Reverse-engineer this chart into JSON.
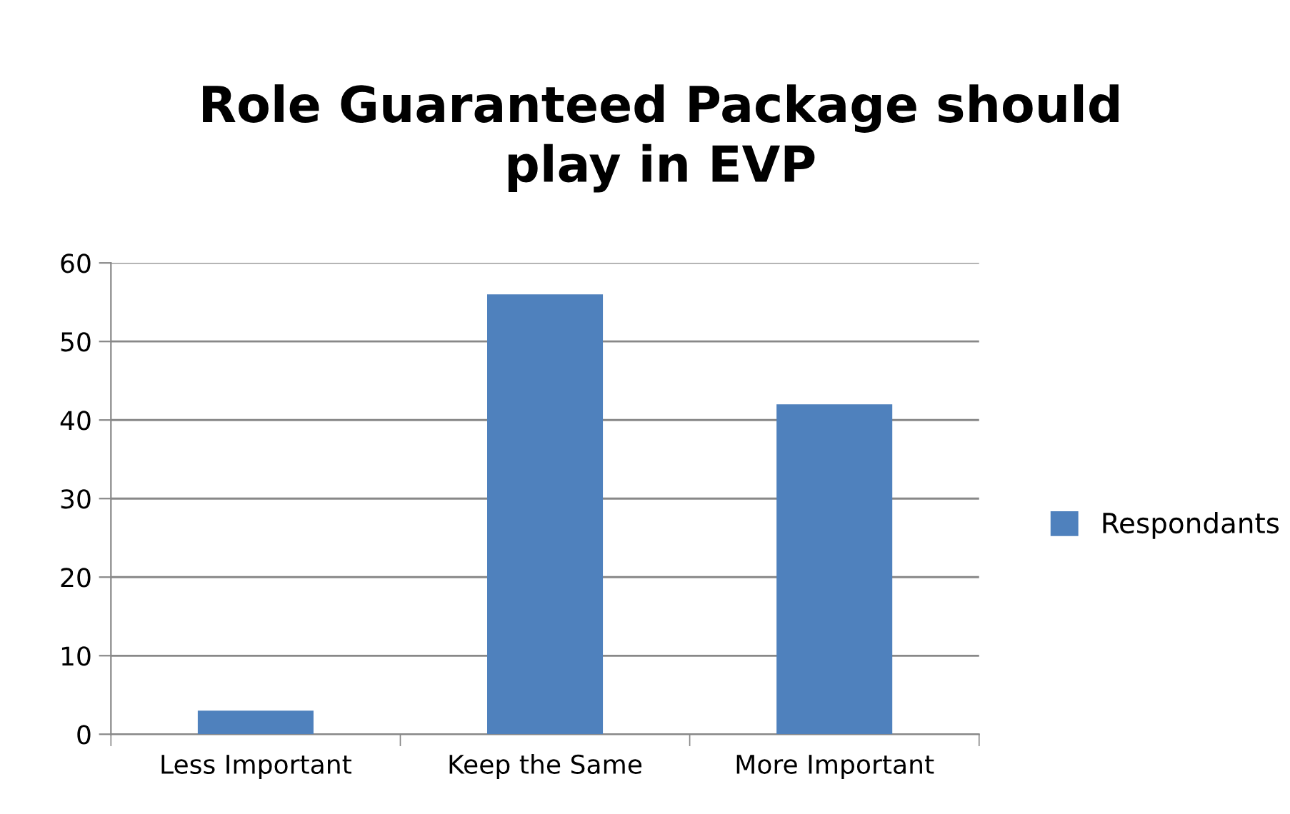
{
  "chart_data": {
    "type": "bar",
    "title": "Role Guaranteed Package should\nplay in EVP",
    "categories": [
      "Less Important",
      "Keep the Same",
      "More Important"
    ],
    "series": [
      {
        "name": "Respondants",
        "color": "#4f81bd",
        "values": [
          3,
          56,
          42
        ]
      }
    ],
    "ylim": [
      0,
      60
    ],
    "yticks": [
      0,
      10,
      20,
      30,
      40,
      50,
      60
    ],
    "grid": "y",
    "legend": "right"
  }
}
